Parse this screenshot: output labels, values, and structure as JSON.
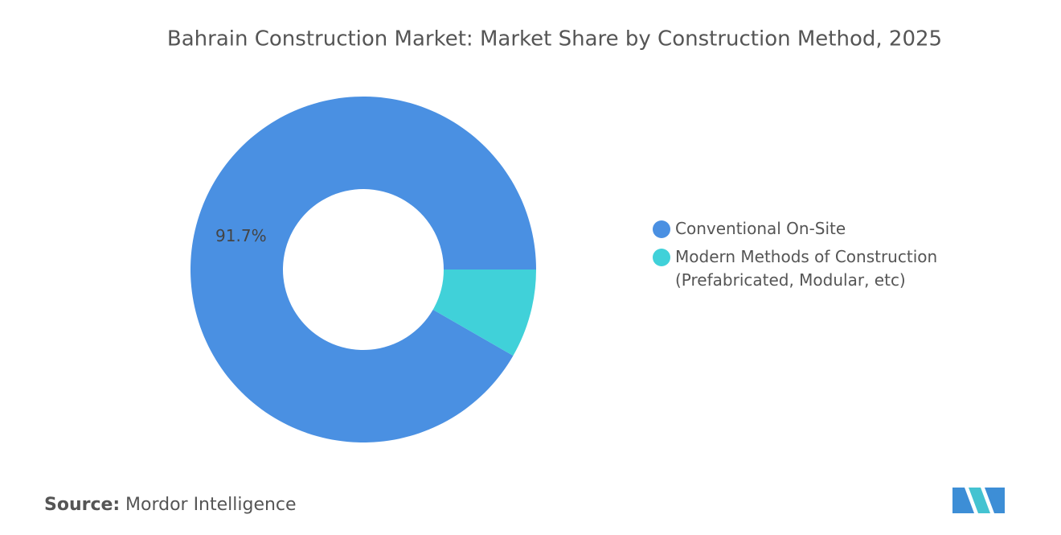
{
  "chart_data": {
    "type": "donut",
    "title": "Bahrain Construction Market: Market Share by Construction Method, 2025",
    "categories": [
      "Conventional On-Site",
      "Modern Methods of Construction (Prefabricated, Modular, etc)"
    ],
    "values": [
      91.7,
      8.3
    ],
    "value_labels": [
      "91.7%",
      null
    ],
    "colors": [
      "#4a90e2",
      "#40d1d9"
    ],
    "legend": "right"
  },
  "footer": {
    "source_label": "Source:",
    "source": "Mordor Intelligence"
  }
}
